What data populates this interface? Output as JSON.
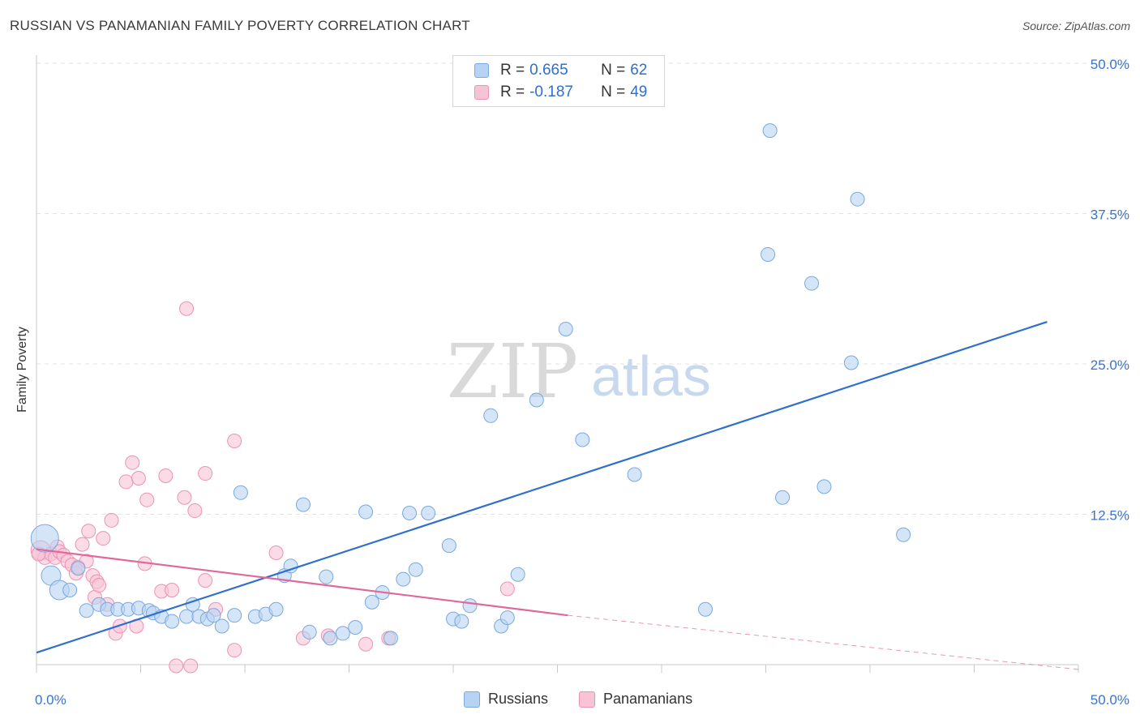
{
  "header": {
    "title": "RUSSIAN VS PANAMANIAN FAMILY POVERTY CORRELATION CHART",
    "source": "Source: ZipAtlas.com"
  },
  "legend": {
    "russians": {
      "r_label": "R =",
      "r_value": "0.665",
      "n_label": "N =",
      "n_value": "62"
    },
    "panamanians": {
      "r_label": "R =",
      "r_value": "-0.187",
      "n_label": "N =",
      "n_value": "49"
    }
  },
  "bottom_legend": {
    "russians": "Russians",
    "panamanians": "Panamanians"
  },
  "watermark": {
    "zip": "ZIP",
    "atlas": "atlas"
  },
  "colors": {
    "blue_fill": "#b7d3f4",
    "blue_stroke": "#7aa8e0",
    "blue_line": "#2f6fce",
    "pink_fill": "#f8c3d5",
    "pink_stroke": "#eb93b3",
    "pink_line": "#e0689a",
    "tick_text": "#3b74c9"
  },
  "chart_data": {
    "type": "scatter",
    "title": "RUSSIAN VS PANAMANIAN FAMILY POVERTY CORRELATION CHART",
    "xlabel": "",
    "ylabel": "Family Poverty",
    "xlim": [
      0,
      50
    ],
    "ylim": [
      0,
      50
    ],
    "x_tick_labels": [
      "0.0%",
      "50.0%"
    ],
    "y_ticks": [
      12.5,
      25.0,
      37.5,
      50.0
    ],
    "y_tick_labels": [
      "12.5%",
      "25.0%",
      "37.5%",
      "50.0%"
    ],
    "grid": true,
    "legend_position": "top-center",
    "series": [
      {
        "name": "Russians",
        "r": 0.665,
        "n": 62,
        "trend": {
          "x": [
            0,
            48.5
          ],
          "y": [
            1.0,
            28.5
          ]
        },
        "points": [
          {
            "x": 0.4,
            "y": 10.5,
            "s": 3
          },
          {
            "x": 0.7,
            "y": 7.4,
            "s": 2
          },
          {
            "x": 1.1,
            "y": 6.2,
            "s": 2
          },
          {
            "x": 1.6,
            "y": 6.2,
            "s": 1
          },
          {
            "x": 2.0,
            "y": 8.0,
            "s": 1
          },
          {
            "x": 2.4,
            "y": 4.5,
            "s": 1
          },
          {
            "x": 3.0,
            "y": 5.0,
            "s": 1
          },
          {
            "x": 3.4,
            "y": 4.6,
            "s": 1
          },
          {
            "x": 3.9,
            "y": 4.6,
            "s": 1
          },
          {
            "x": 4.4,
            "y": 4.6,
            "s": 1
          },
          {
            "x": 4.9,
            "y": 4.7,
            "s": 1
          },
          {
            "x": 5.4,
            "y": 4.5,
            "s": 1
          },
          {
            "x": 5.6,
            "y": 4.3,
            "s": 1
          },
          {
            "x": 6.0,
            "y": 4.0,
            "s": 1
          },
          {
            "x": 6.5,
            "y": 3.6,
            "s": 1
          },
          {
            "x": 7.2,
            "y": 4.0,
            "s": 1
          },
          {
            "x": 7.5,
            "y": 5.0,
            "s": 1
          },
          {
            "x": 7.8,
            "y": 4.0,
            "s": 1
          },
          {
            "x": 8.2,
            "y": 3.8,
            "s": 1
          },
          {
            "x": 8.5,
            "y": 4.1,
            "s": 1
          },
          {
            "x": 8.9,
            "y": 3.2,
            "s": 1
          },
          {
            "x": 9.5,
            "y": 4.1,
            "s": 1
          },
          {
            "x": 9.8,
            "y": 14.3,
            "s": 1
          },
          {
            "x": 10.5,
            "y": 4.0,
            "s": 1
          },
          {
            "x": 11.0,
            "y": 4.2,
            "s": 1
          },
          {
            "x": 11.5,
            "y": 4.6,
            "s": 1
          },
          {
            "x": 11.9,
            "y": 7.4,
            "s": 1
          },
          {
            "x": 12.2,
            "y": 8.2,
            "s": 1
          },
          {
            "x": 12.8,
            "y": 13.3,
            "s": 1
          },
          {
            "x": 13.1,
            "y": 2.7,
            "s": 1
          },
          {
            "x": 13.9,
            "y": 7.3,
            "s": 1
          },
          {
            "x": 14.1,
            "y": 2.2,
            "s": 1
          },
          {
            "x": 14.7,
            "y": 2.6,
            "s": 1
          },
          {
            "x": 15.3,
            "y": 3.1,
            "s": 1
          },
          {
            "x": 15.8,
            "y": 12.7,
            "s": 1
          },
          {
            "x": 16.1,
            "y": 5.2,
            "s": 1
          },
          {
            "x": 16.6,
            "y": 6.0,
            "s": 1
          },
          {
            "x": 17.0,
            "y": 2.2,
            "s": 1
          },
          {
            "x": 17.6,
            "y": 7.1,
            "s": 1
          },
          {
            "x": 17.9,
            "y": 12.6,
            "s": 1
          },
          {
            "x": 18.2,
            "y": 7.9,
            "s": 1
          },
          {
            "x": 18.8,
            "y": 12.6,
            "s": 1
          },
          {
            "x": 19.8,
            "y": 9.9,
            "s": 1
          },
          {
            "x": 20.0,
            "y": 3.8,
            "s": 1
          },
          {
            "x": 20.4,
            "y": 3.6,
            "s": 1
          },
          {
            "x": 20.8,
            "y": 4.9,
            "s": 1
          },
          {
            "x": 21.8,
            "y": 20.7,
            "s": 1
          },
          {
            "x": 22.3,
            "y": 3.2,
            "s": 1
          },
          {
            "x": 22.6,
            "y": 3.9,
            "s": 1
          },
          {
            "x": 23.1,
            "y": 7.5,
            "s": 1
          },
          {
            "x": 24.0,
            "y": 22.0,
            "s": 1
          },
          {
            "x": 25.4,
            "y": 27.9,
            "s": 1
          },
          {
            "x": 26.2,
            "y": 18.7,
            "s": 1
          },
          {
            "x": 28.7,
            "y": 15.8,
            "s": 1
          },
          {
            "x": 32.1,
            "y": 4.6,
            "s": 1
          },
          {
            "x": 35.2,
            "y": 44.4,
            "s": 1
          },
          {
            "x": 35.1,
            "y": 34.1,
            "s": 1
          },
          {
            "x": 35.8,
            "y": 13.9,
            "s": 1
          },
          {
            "x": 37.2,
            "y": 31.7,
            "s": 1
          },
          {
            "x": 37.8,
            "y": 14.8,
            "s": 1
          },
          {
            "x": 39.1,
            "y": 25.1,
            "s": 1
          },
          {
            "x": 39.4,
            "y": 38.7,
            "s": 1
          },
          {
            "x": 41.6,
            "y": 10.8,
            "s": 1
          }
        ]
      },
      {
        "name": "Panamanians",
        "r": -0.187,
        "n": 49,
        "trend": {
          "x": [
            0,
            25.5
          ],
          "y": [
            9.6,
            4.1
          ],
          "dashed_to": {
            "x": 50,
            "y": -0.4
          }
        },
        "points": [
          {
            "x": 0.2,
            "y": 9.5,
            "s": 2
          },
          {
            "x": 0.4,
            "y": 8.9,
            "s": 1
          },
          {
            "x": 0.7,
            "y": 9.2,
            "s": 1
          },
          {
            "x": 0.9,
            "y": 8.9,
            "s": 1
          },
          {
            "x": 1.0,
            "y": 9.8,
            "s": 1
          },
          {
            "x": 1.1,
            "y": 9.4,
            "s": 1
          },
          {
            "x": 1.3,
            "y": 9.1,
            "s": 1
          },
          {
            "x": 1.5,
            "y": 8.6,
            "s": 1
          },
          {
            "x": 1.7,
            "y": 8.3,
            "s": 1
          },
          {
            "x": 1.9,
            "y": 7.6,
            "s": 1
          },
          {
            "x": 2.0,
            "y": 8.1,
            "s": 1
          },
          {
            "x": 2.2,
            "y": 10.0,
            "s": 1
          },
          {
            "x": 2.4,
            "y": 8.6,
            "s": 1
          },
          {
            "x": 2.5,
            "y": 11.1,
            "s": 1
          },
          {
            "x": 2.7,
            "y": 7.4,
            "s": 1
          },
          {
            "x": 2.8,
            "y": 5.6,
            "s": 1
          },
          {
            "x": 2.9,
            "y": 6.9,
            "s": 1
          },
          {
            "x": 3.0,
            "y": 6.6,
            "s": 1
          },
          {
            "x": 3.2,
            "y": 10.5,
            "s": 1
          },
          {
            "x": 3.4,
            "y": 5.0,
            "s": 1
          },
          {
            "x": 3.6,
            "y": 12.0,
            "s": 1
          },
          {
            "x": 3.8,
            "y": 2.6,
            "s": 1
          },
          {
            "x": 4.0,
            "y": 3.2,
            "s": 1
          },
          {
            "x": 4.3,
            "y": 15.2,
            "s": 1
          },
          {
            "x": 4.6,
            "y": 16.8,
            "s": 1
          },
          {
            "x": 4.8,
            "y": 3.2,
            "s": 1
          },
          {
            "x": 4.9,
            "y": 15.5,
            "s": 1
          },
          {
            "x": 5.2,
            "y": 8.4,
            "s": 1
          },
          {
            "x": 5.3,
            "y": 13.7,
            "s": 1
          },
          {
            "x": 6.0,
            "y": 6.1,
            "s": 1
          },
          {
            "x": 6.2,
            "y": 15.7,
            "s": 1
          },
          {
            "x": 6.5,
            "y": 6.2,
            "s": 1
          },
          {
            "x": 6.7,
            "y": -0.1,
            "s": 1
          },
          {
            "x": 7.1,
            "y": 13.9,
            "s": 1
          },
          {
            "x": 7.2,
            "y": 29.6,
            "s": 1
          },
          {
            "x": 7.4,
            "y": -0.1,
            "s": 1
          },
          {
            "x": 7.6,
            "y": 12.8,
            "s": 1
          },
          {
            "x": 8.1,
            "y": 7.0,
            "s": 1
          },
          {
            "x": 8.1,
            "y": 15.9,
            "s": 1
          },
          {
            "x": 8.6,
            "y": 4.6,
            "s": 1
          },
          {
            "x": 9.5,
            "y": 18.6,
            "s": 1
          },
          {
            "x": 9.5,
            "y": 1.2,
            "s": 1
          },
          {
            "x": 11.5,
            "y": 9.3,
            "s": 1
          },
          {
            "x": 12.8,
            "y": 2.2,
            "s": 1
          },
          {
            "x": 14.0,
            "y": 2.4,
            "s": 1
          },
          {
            "x": 15.8,
            "y": 1.7,
            "s": 1
          },
          {
            "x": 16.9,
            "y": 2.2,
            "s": 1
          },
          {
            "x": 22.6,
            "y": 6.3,
            "s": 1
          },
          {
            "x": 0.1,
            "y": 9.2,
            "s": 1
          }
        ]
      }
    ]
  }
}
